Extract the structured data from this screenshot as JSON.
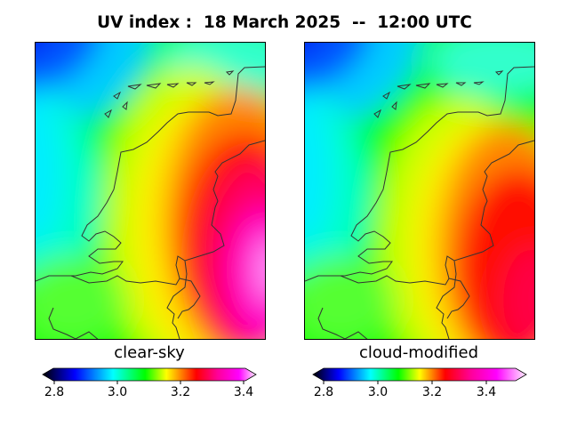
{
  "title": "UV index :  18 March 2025  --  12:00 UTC",
  "panels": [
    {
      "label": "clear-sky",
      "colorbar_ticks": [
        "2.8",
        "3.0",
        "3.2",
        "3.4"
      ],
      "colorbar_range": [
        2.8,
        3.4
      ]
    },
    {
      "label": "cloud-modified",
      "colorbar_ticks": [
        "2.8",
        "3.0",
        "3.2",
        "3.4"
      ],
      "colorbar_range": [
        2.8,
        3.55
      ]
    }
  ],
  "colormap": [
    "#000000",
    "#0000ff",
    "#00ffff",
    "#00ff00",
    "#ffff00",
    "#ff0000",
    "#ff00aa",
    "#ff00ff",
    "#ffffff"
  ],
  "colors": {
    "coastline": "#333333",
    "frame": "#000000"
  }
}
